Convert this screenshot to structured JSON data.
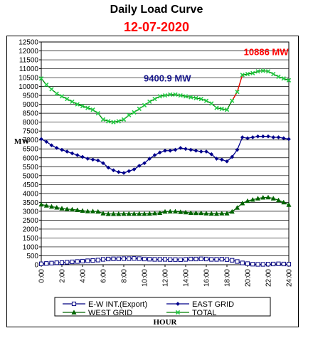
{
  "chart_data": {
    "type": "line",
    "title": "Daily Load Curve",
    "subtitle": "12-07-2020",
    "xlabel": "HOUR",
    "ylabel": "MW",
    "ylim": [
      0,
      12500
    ],
    "xlim": [
      0,
      24
    ],
    "y_ticks": [
      0,
      500,
      1000,
      1500,
      2000,
      2500,
      3000,
      3500,
      4000,
      4500,
      5000,
      5500,
      6000,
      6500,
      7000,
      7500,
      8000,
      8500,
      9000,
      9500,
      10000,
      10500,
      11000,
      11500,
      12000,
      12500
    ],
    "x_ticks": [
      "0:00",
      "2:00",
      "4:00",
      "6:00",
      "8:00",
      "10:00",
      "12:00",
      "14:00",
      "16:00",
      "18:00",
      "20:00",
      "22:00",
      "24:00"
    ],
    "x_tick_values": [
      0,
      2,
      4,
      6,
      8,
      10,
      12,
      14,
      16,
      18,
      20,
      22,
      24
    ],
    "x": [
      0,
      0.5,
      1,
      1.5,
      2,
      2.5,
      3,
      3.5,
      4,
      4.5,
      5,
      5.5,
      6,
      6.5,
      7,
      7.5,
      8,
      8.5,
      9,
      9.5,
      10,
      10.5,
      11,
      11.5,
      12,
      12.5,
      13,
      13.5,
      14,
      14.5,
      15,
      15.5,
      16,
      16.5,
      17,
      17.5,
      18,
      18.5,
      19,
      19.5,
      20,
      20.5,
      21,
      21.5,
      22,
      22.5,
      23,
      23.5,
      24
    ],
    "grid": true,
    "legend_position": "bottom",
    "annotations": [
      {
        "text": "9400.9 MW",
        "x": 12.5,
        "y": 9400.9,
        "color": "#1a1a8c"
      },
      {
        "text": "10886 MW",
        "x": 21.8,
        "y": 10886,
        "color": "#ff0000"
      }
    ],
    "series": [
      {
        "name": "E-W INT.(Export)",
        "color": "#000080",
        "marker": "square",
        "values": [
          50,
          70,
          90,
          110,
          120,
          140,
          160,
          180,
          200,
          220,
          240,
          260,
          300,
          320,
          330,
          330,
          340,
          340,
          350,
          340,
          320,
          310,
          300,
          300,
          300,
          290,
          290,
          280,
          300,
          320,
          320,
          330,
          320,
          300,
          300,
          310,
          290,
          250,
          180,
          100,
          60,
          30,
          20,
          20,
          30,
          40,
          50,
          40,
          30
        ]
      },
      {
        "name": "EAST GRID",
        "color": "#00008b",
        "marker": "diamond",
        "values": [
          7050,
          6900,
          6700,
          6550,
          6450,
          6350,
          6250,
          6150,
          6050,
          5950,
          5900,
          5850,
          5700,
          5450,
          5300,
          5200,
          5150,
          5250,
          5350,
          5550,
          5700,
          5950,
          6150,
          6300,
          6400,
          6400,
          6450,
          6550,
          6500,
          6450,
          6400,
          6350,
          6350,
          6200,
          5950,
          5900,
          5800,
          6050,
          6450,
          7150,
          7100,
          7150,
          7200,
          7200,
          7200,
          7150,
          7150,
          7100,
          7050
        ]
      },
      {
        "name": "WEST GRID",
        "color": "#006400",
        "marker": "triangle",
        "values": [
          3380,
          3320,
          3260,
          3210,
          3160,
          3120,
          3100,
          3070,
          3030,
          3000,
          3000,
          2980,
          2880,
          2850,
          2850,
          2850,
          2860,
          2860,
          2860,
          2860,
          2860,
          2870,
          2890,
          2910,
          2980,
          2990,
          2990,
          2960,
          2940,
          2910,
          2900,
          2900,
          2880,
          2870,
          2860,
          2880,
          2880,
          2980,
          3200,
          3450,
          3580,
          3650,
          3720,
          3770,
          3780,
          3720,
          3620,
          3500,
          3360
        ]
      },
      {
        "name": "TOTAL",
        "color": "#008000",
        "marker": "x",
        "point_color": "#22cc44",
        "values": [
          10450,
          10100,
          9850,
          9600,
          9450,
          9300,
          9150,
          9000,
          8900,
          8800,
          8700,
          8500,
          8150,
          8050,
          8000,
          8050,
          8150,
          8400,
          8550,
          8750,
          8950,
          9150,
          9300,
          9450,
          9500,
          9550,
          9550,
          9500,
          9450,
          9400,
          9350,
          9300,
          9200,
          9050,
          8800,
          8750,
          8700,
          9200,
          9700,
          10650,
          10700,
          10750,
          10850,
          10886,
          10850,
          10700,
          10550,
          10450,
          10350
        ]
      }
    ]
  }
}
